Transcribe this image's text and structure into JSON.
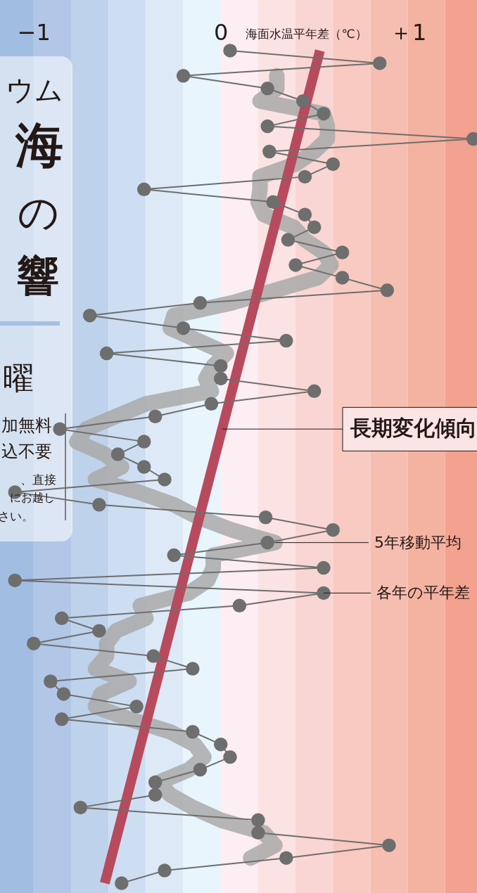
{
  "chart_data": {
    "type": "line",
    "orientation": "horizontal",
    "xlabel": "海面水温平年差（℃）",
    "categories": [
      null,
      null,
      null,
      null,
      null,
      null,
      null,
      null,
      null,
      null,
      null,
      null,
      null,
      null,
      null,
      null,
      null,
      null,
      null,
      null,
      null,
      null,
      null,
      null,
      null,
      null,
      null,
      null,
      null,
      null,
      null,
      null,
      null,
      null,
      null,
      null,
      null,
      null,
      null,
      null,
      null,
      null,
      null,
      null,
      null,
      null,
      null,
      null,
      null,
      null,
      null,
      null,
      null,
      null,
      null,
      null,
      null,
      null,
      null,
      null,
      null,
      null,
      null,
      null,
      null,
      null,
      null
    ],
    "xlim": [
      -1.18,
      1.37
    ],
    "xticks": [
      {
        "value": -1,
        "label": "−1"
      },
      0,
      {
        "value": 1,
        "label": "＋1"
      }
    ],
    "tick_labels": "x",
    "legend": false,
    "series": [
      {
        "name": "各年の平年差",
        "marker": "circle",
        "color": "#6e6e6e",
        "values": [
          0.05,
          0.85,
          -0.2,
          0.25,
          0.44,
          0.55,
          0.25,
          1.35,
          0.26,
          0.6,
          0.45,
          -0.41,
          0.28,
          0.45,
          0.5,
          0.36,
          0.65,
          0.4,
          0.65,
          0.89,
          -0.11,
          -0.7,
          -0.2,
          0.35,
          -0.61,
          0.0,
          0.0,
          0.5,
          -0.05,
          -0.35,
          -0.86,
          -0.41,
          -0.55,
          -0.41,
          -0.3,
          -1.1,
          -0.65,
          0.24,
          0.6,
          0.25,
          -0.25,
          0.55,
          -1.1,
          0.55,
          0.1,
          -0.85,
          -0.65,
          -1.0,
          -0.36,
          -0.15,
          -0.91,
          -0.84,
          -0.45,
          -0.85,
          -0.15,
          0.0,
          0.05,
          -0.11,
          -0.35,
          -0.35,
          -0.75,
          0.2,
          0.2,
          0.9,
          0.35,
          -0.3,
          -0.53
        ]
      },
      {
        "name": "5年移動平均",
        "marker": "none",
        "color": "#a9a9a9",
        "values": [
          null,
          null,
          0.3,
          0.3,
          0.21,
          0.55,
          0.57,
          0.57,
          0.5,
          0.4,
          0.21,
          0.21,
          0.2,
          0.23,
          0.39,
          0.45,
          0.55,
          0.59,
          0.52,
          0.29,
          0.06,
          -0.25,
          -0.27,
          -0.12,
          0.03,
          -0.04,
          -0.08,
          -0.05,
          -0.4,
          -0.56,
          -0.72,
          -0.77,
          -0.62,
          -0.53,
          -0.67,
          -0.44,
          -0.25,
          -0.12,
          0.06,
          0.29,
          -0.04,
          -0.04,
          -0.07,
          -0.17,
          -0.43,
          -0.4,
          -0.56,
          -0.61,
          -0.61,
          -0.67,
          -0.49,
          -0.64,
          -0.67,
          -0.49,
          -0.27,
          -0.14,
          -0.09,
          -0.17,
          -0.33,
          -0.27,
          -0.15,
          0.0,
          0.23,
          0.29,
          0.16,
          null,
          null
        ]
      },
      {
        "name": "長期変化傾向",
        "marker": "none",
        "color": "#b84a5e",
        "values": [
          0.53,
          null,
          null,
          null,
          null,
          null,
          null,
          null,
          null,
          null,
          null,
          null,
          null,
          null,
          null,
          null,
          null,
          null,
          null,
          null,
          null,
          null,
          null,
          null,
          null,
          null,
          null,
          null,
          null,
          null,
          null,
          null,
          null,
          null,
          null,
          null,
          null,
          null,
          null,
          null,
          null,
          null,
          null,
          null,
          null,
          null,
          null,
          null,
          null,
          null,
          null,
          null,
          null,
          null,
          null,
          null,
          null,
          null,
          null,
          null,
          null,
          null,
          null,
          null,
          null,
          null,
          -0.62
        ]
      }
    ],
    "bands": [
      {
        "axis": "x",
        "from": -1.18,
        "to": -1.0,
        "color": "#a1bde1"
      },
      {
        "axis": "x",
        "from": -1.0,
        "to": -0.8,
        "color": "#b2c7e7"
      },
      {
        "axis": "x",
        "from": -0.8,
        "to": -0.6,
        "color": "#bfd2eb"
      },
      {
        "axis": "x",
        "from": -0.6,
        "to": -0.4,
        "color": "#cddef3"
      },
      {
        "axis": "x",
        "from": -0.4,
        "to": -0.2,
        "color": "#dde9f6"
      },
      {
        "axis": "x",
        "from": -0.2,
        "to": 0.0,
        "color": "#e8f5fd"
      },
      {
        "axis": "x",
        "from": 0.0,
        "to": 0.2,
        "color": "#fdeef3"
      },
      {
        "axis": "x",
        "from": 0.2,
        "to": 0.4,
        "color": "#fbe2e3"
      },
      {
        "axis": "x",
        "from": 0.4,
        "to": 0.6,
        "color": "#f9d6d3"
      },
      {
        "axis": "x",
        "from": 0.6,
        "to": 0.8,
        "color": "#f8cac2"
      },
      {
        "axis": "x",
        "from": 0.8,
        "to": 1.0,
        "color": "#f6beb1"
      },
      {
        "axis": "x",
        "from": 1.0,
        "to": 1.2,
        "color": "#f4b2a0"
      },
      {
        "axis": "x",
        "from": 1.2,
        "to": 1.37,
        "color": "#f2a28f"
      }
    ],
    "annotations": [
      "ウム",
      "海",
      "の",
      "響",
      "曜",
      "加無料",
      "込不要",
      "、直接",
      "にお越し",
      "さい。"
    ]
  }
}
